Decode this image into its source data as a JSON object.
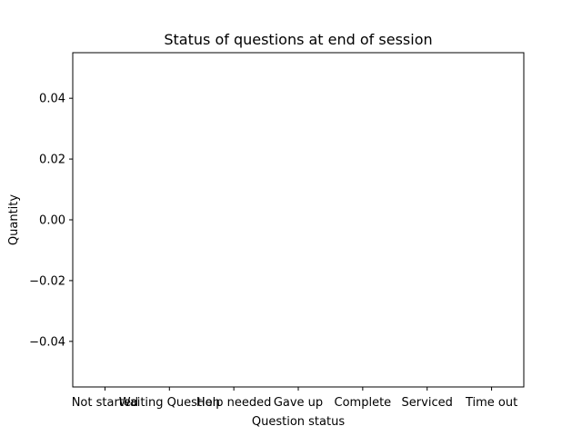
{
  "chart_data": {
    "type": "bar",
    "title": "Status of questions at end of session",
    "xlabel": "Question status",
    "ylabel": "Quantity",
    "categories": [
      "Not started",
      "Waiting Question",
      "Help needed",
      "Gave up",
      "Complete",
      "Serviced",
      "Time out"
    ],
    "values": [
      0,
      0,
      0,
      0,
      0,
      0,
      0
    ],
    "ylim": [
      -0.055,
      0.055
    ],
    "yticks": [
      -0.04,
      -0.02,
      0.0,
      0.02,
      0.04
    ],
    "ytick_labels": [
      "−0.04",
      "−0.02",
      "0.00",
      "0.02",
      "0.04"
    ],
    "grid": false,
    "legend": "none"
  }
}
